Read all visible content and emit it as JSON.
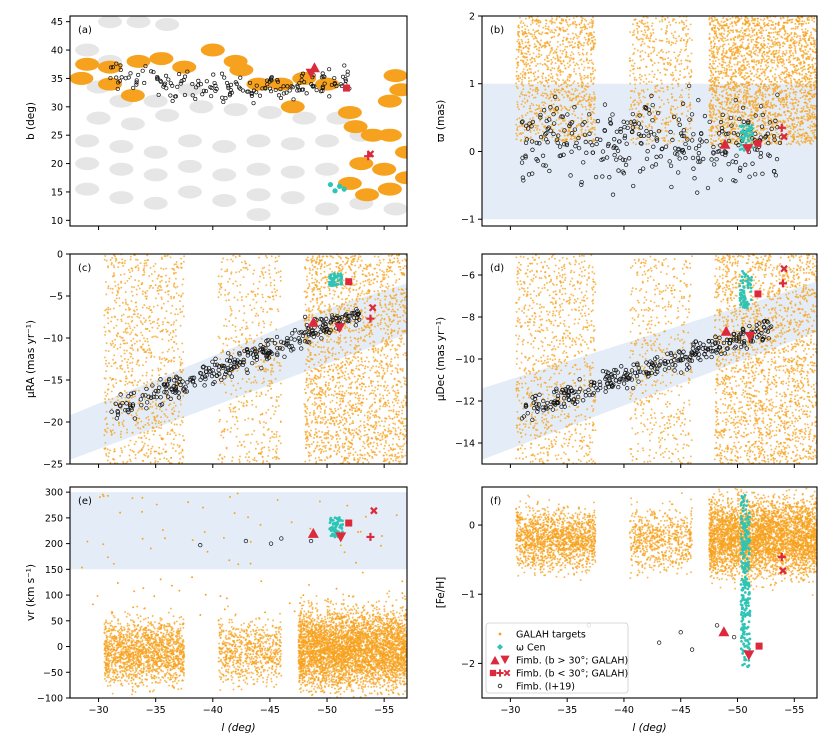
{
  "colors": {
    "galah": "#f7a21e",
    "omega": "#2ec4b6",
    "fimb": "#dc2a3c",
    "band": "#e4edf7",
    "grey": "#c7c7c7",
    "ring": "#111111"
  },
  "chart_data": [
    {
      "id": "a",
      "type": "scatter",
      "panel_label": "(a)",
      "xlabel": "",
      "ylabel": "b (deg)",
      "xlim": [
        -27.5,
        -57
      ],
      "ylim": [
        9,
        46
      ],
      "xticks": [
        -30,
        -35,
        -40,
        -45,
        -50,
        -55
      ],
      "xtick_labels": [
        "",
        "",
        "",
        "",
        "",
        ""
      ],
      "yticks": [
        10,
        15,
        20,
        25,
        30,
        35,
        40,
        45
      ],
      "ytick_labels": [
        "10",
        "15",
        "20",
        "25",
        "30",
        "35",
        "40",
        "45"
      ],
      "series": [
        {
          "name": "Other survey fields",
          "color": "grey",
          "points": [
            [
              -31,
              45
            ],
            [
              -33.5,
              45
            ],
            [
              -36,
              44.5
            ],
            [
              -29,
              40
            ],
            [
              -31,
              38
            ],
            [
              -30,
              33.5
            ],
            [
              -32,
              31
            ],
            [
              -35,
              31
            ],
            [
              -38,
              33
            ],
            [
              -30,
              28
            ],
            [
              -33,
              27
            ],
            [
              -36,
              28.5
            ],
            [
              -39,
              30
            ],
            [
              -42,
              29.5
            ],
            [
              -45,
              29
            ],
            [
              -48,
              28
            ],
            [
              -51,
              28
            ],
            [
              -29,
              24
            ],
            [
              -32,
              23
            ],
            [
              -35,
              22
            ],
            [
              -38,
              24
            ],
            [
              -41,
              23
            ],
            [
              -44,
              24
            ],
            [
              -47,
              23.5
            ],
            [
              -50,
              24
            ],
            [
              -53,
              25
            ],
            [
              -29,
              20
            ],
            [
              -32,
              19
            ],
            [
              -35,
              18
            ],
            [
              -38,
              19.5
            ],
            [
              -41,
              18
            ],
            [
              -44,
              19
            ],
            [
              -47,
              18.5
            ],
            [
              -50,
              19
            ],
            [
              -29,
              15.5
            ],
            [
              -32,
              14
            ],
            [
              -35,
              13
            ],
            [
              -38,
              15
            ],
            [
              -41,
              13.5
            ],
            [
              -44,
              14.5
            ],
            [
              -47,
              14
            ],
            [
              -50,
              12
            ],
            [
              -53,
              13
            ],
            [
              -56,
              12
            ],
            [
              -44,
              11
            ]
          ]
        },
        {
          "name": "GALAH fields",
          "color": "galah",
          "points": [
            [
              -28.5,
              35
            ],
            [
              -31,
              34
            ],
            [
              -33,
              32
            ],
            [
              -31,
              37
            ],
            [
              -33.5,
              38
            ],
            [
              -35.5,
              38.5
            ],
            [
              -37.5,
              37
            ],
            [
              -40,
              40
            ],
            [
              -42,
              38
            ],
            [
              -42.5,
              36.5
            ],
            [
              -44,
              34
            ],
            [
              -46,
              34
            ],
            [
              -48,
              35
            ],
            [
              -50,
              34
            ],
            [
              -47,
              30
            ],
            [
              -52,
              29
            ],
            [
              -52.5,
              26.5
            ],
            [
              -54,
              25
            ],
            [
              -55.5,
              25
            ],
            [
              -57,
              22
            ],
            [
              -53,
              20
            ],
            [
              -55,
              19
            ],
            [
              -57,
              17.5
            ],
            [
              -55.5,
              15.5
            ],
            [
              -53.5,
              14.5
            ],
            [
              -52,
              16.5
            ],
            [
              -56,
              35.5
            ],
            [
              -55.5,
              31
            ],
            [
              -56.5,
              33
            ],
            [
              -29,
              37.5
            ]
          ]
        }
      ],
      "omega_points": [
        [
          -50.3,
          16.3
        ],
        [
          -50.7,
          15.2
        ],
        [
          -51.1,
          16.0
        ],
        [
          -51.5,
          15.5
        ]
      ],
      "fimb_markers": [
        {
          "marker": "^",
          "l": -48.9,
          "b": 36.8
        },
        {
          "marker": "v",
          "l": -48.6,
          "b": 36.0
        },
        {
          "marker": "s",
          "l": -51.7,
          "b": 33.3
        },
        {
          "marker": "x",
          "l": -53.8,
          "b": 21.7
        },
        {
          "marker": "+",
          "l": -53.6,
          "b": 21.3
        }
      ]
    },
    {
      "id": "b",
      "type": "scatter",
      "panel_label": "(b)",
      "xlabel": "",
      "ylabel": "ϖ (mas)",
      "xlim": [
        -27.5,
        -57
      ],
      "ylim": [
        -1.1,
        2
      ],
      "xticks": [
        -30,
        -35,
        -40,
        -45,
        -50,
        -55
      ],
      "xtick_labels": [
        "",
        "",
        "",
        "",
        "",
        ""
      ],
      "yticks": [
        -1,
        0,
        1,
        2
      ],
      "ytick_labels": [
        "−1",
        "0",
        "1",
        "2"
      ],
      "band": {
        "type": "rect",
        "x": [
          -27.5,
          -57
        ],
        "y": [
          -1,
          1
        ]
      },
      "galah_groups": [
        {
          "l": [
            -30.5,
            -37.5
          ],
          "y": [
            0.15,
            2.0
          ],
          "n": 1100
        },
        {
          "l": [
            -40.5,
            -46.0
          ],
          "y": [
            0.1,
            2.0
          ],
          "n": 520
        },
        {
          "l": [
            -47.5,
            -57.0
          ],
          "y": [
            0.1,
            2.0
          ],
          "n": 2400
        }
      ],
      "ring_band": {
        "l": [
          -31,
          -54
        ],
        "y": [
          -0.6,
          0.9
        ],
        "n": 320
      },
      "omega_block": {
        "l": [
          -50.2,
          -51.4
        ],
        "y": [
          0.0,
          0.4
        ],
        "n": 60
      },
      "fimb_markers": [
        {
          "marker": "^",
          "l": -48.9,
          "y": 0.1
        },
        {
          "marker": "v",
          "l": -50.9,
          "y": 0.05
        },
        {
          "marker": "s",
          "l": -51.8,
          "y": 0.12
        },
        {
          "marker": "+",
          "l": -53.9,
          "y": 0.35
        },
        {
          "marker": "x",
          "l": -54.1,
          "y": 0.22
        }
      ]
    },
    {
      "id": "c",
      "type": "scatter",
      "panel_label": "(c)",
      "xlabel": "",
      "ylabel": "μRA (mas yr⁻¹)",
      "xlim": [
        -27.5,
        -57
      ],
      "ylim": [
        -25,
        0
      ],
      "xticks": [
        -30,
        -35,
        -40,
        -45,
        -50,
        -55
      ],
      "xtick_labels": [
        "",
        "",
        "",
        "",
        "",
        ""
      ],
      "yticks": [
        -25,
        -20,
        -15,
        -10,
        -5,
        0
      ],
      "ytick_labels": [
        "−25",
        "−20",
        "−15",
        "−10",
        "−5",
        "0"
      ],
      "band": {
        "type": "poly",
        "points": [
          [
            -27.5,
            -19.2
          ],
          [
            -50,
            -6.5
          ],
          [
            -57,
            -3.5
          ],
          [
            -57,
            -9.5
          ],
          [
            -27.5,
            -24.5
          ]
        ]
      },
      "galah_groups": [
        {
          "l": [
            -30.5,
            -37.5
          ],
          "y": [
            -25,
            0
          ],
          "n": 900
        },
        {
          "l": [
            -40.5,
            -46.0
          ],
          "y": [
            -25,
            0
          ],
          "n": 480
        },
        {
          "l": [
            -48.0,
            -57.0
          ],
          "y": [
            -25,
            0
          ],
          "n": 2000
        }
      ],
      "ring_line": {
        "l": [
          -31,
          -53
        ],
        "y_start": -19,
        "y_end": -7,
        "scatter": 1.6,
        "n": 320
      },
      "omega_block": {
        "l": [
          -50.2,
          -51.3
        ],
        "y": [
          -3.8,
          -2.3
        ],
        "n": 60
      },
      "fimb_markers": [
        {
          "marker": "^",
          "l": -48.8,
          "y": -8.2
        },
        {
          "marker": "v",
          "l": -51.1,
          "y": -8.7
        },
        {
          "marker": "s",
          "l": -51.9,
          "y": -3.3
        },
        {
          "marker": "x",
          "l": -54.0,
          "y": -6.4
        },
        {
          "marker": "+",
          "l": -53.8,
          "y": -7.7
        }
      ]
    },
    {
      "id": "d",
      "type": "scatter",
      "panel_label": "(d)",
      "xlabel": "",
      "ylabel": "μDec (mas yr⁻¹)",
      "xlim": [
        -27.5,
        -57
      ],
      "ylim": [
        -15,
        -5
      ],
      "xticks": [
        -30,
        -35,
        -40,
        -45,
        -50,
        -55
      ],
      "xtick_labels": [
        "",
        "",
        "",
        "",
        "",
        ""
      ],
      "yticks": [
        -14,
        -12,
        -10,
        -8,
        -6
      ],
      "ytick_labels": [
        "−14",
        "−12",
        "−10",
        "−8",
        "−6"
      ],
      "band": {
        "type": "poly",
        "points": [
          [
            -27.5,
            -11.4
          ],
          [
            -52,
            -7.2
          ],
          [
            -57,
            -6.3
          ],
          [
            -57,
            -8.7
          ],
          [
            -27.5,
            -14.8
          ]
        ]
      },
      "galah_groups": [
        {
          "l": [
            -30.5,
            -37.5
          ],
          "y": [
            -15,
            -5
          ],
          "n": 900
        },
        {
          "l": [
            -40.5,
            -46.0
          ],
          "y": [
            -15,
            -5
          ],
          "n": 480
        },
        {
          "l": [
            -48.0,
            -57.0
          ],
          "y": [
            -15,
            -5
          ],
          "n": 2000
        }
      ],
      "ring_line": {
        "l": [
          -31,
          -53
        ],
        "y_start": -12.5,
        "y_end": -8.5,
        "scatter": 0.6,
        "n": 320
      },
      "omega_block": {
        "l": [
          -50.2,
          -51.3
        ],
        "y": [
          -7.6,
          -5.8
        ],
        "n": 70
      },
      "fimb_markers": [
        {
          "marker": "^",
          "l": -49.0,
          "y": -8.7
        },
        {
          "marker": "v",
          "l": -51.1,
          "y": -8.9
        },
        {
          "marker": "s",
          "l": -51.8,
          "y": -6.9
        },
        {
          "marker": "x",
          "l": -54.1,
          "y": -5.7
        },
        {
          "marker": "+",
          "l": -54.0,
          "y": -6.4
        }
      ]
    },
    {
      "id": "e",
      "type": "scatter",
      "panel_label": "(e)",
      "xlabel": "l (deg)",
      "ylabel": "vr (km s⁻¹)",
      "xlim": [
        -27.5,
        -57
      ],
      "ylim": [
        -100,
        310
      ],
      "xticks": [
        -30,
        -35,
        -40,
        -45,
        -50,
        -55
      ],
      "xtick_labels": [
        "−30",
        "−35",
        "−40",
        "−45",
        "−50",
        "−55"
      ],
      "yticks": [
        -100,
        -50,
        0,
        50,
        100,
        150,
        200,
        250,
        300
      ],
      "ytick_labels": [
        "−100",
        "−50",
        "0",
        "50",
        "100",
        "150",
        "200",
        "250",
        "300"
      ],
      "band": {
        "type": "rect",
        "x": [
          -27.5,
          -57
        ],
        "y": [
          150,
          300
        ]
      },
      "galah_groups": [
        {
          "l": [
            -30.5,
            -37.5
          ],
          "y": [
            -80,
            60
          ],
          "n": 1600
        },
        {
          "l": [
            -40.5,
            -46.0
          ],
          "y": [
            -80,
            60
          ],
          "n": 700
        },
        {
          "l": [
            -47.5,
            -57.0
          ],
          "y": [
            -90,
            80
          ],
          "n": 4200
        }
      ],
      "galah_sparse": {
        "l": [
          -28,
          -57
        ],
        "y": [
          60,
          300
        ],
        "n": 80
      },
      "ring_points": [
        [
          -38.9,
          197
        ],
        [
          -42.9,
          205
        ],
        [
          -45.1,
          200
        ],
        [
          -46.0,
          210
        ],
        [
          -48.6,
          205
        ]
      ],
      "omega_block": {
        "l": [
          -50.2,
          -51.4
        ],
        "y": [
          212,
          252
        ],
        "n": 70
      },
      "fimb_markers": [
        {
          "marker": "^",
          "l": -48.8,
          "y": 219
        },
        {
          "marker": "v",
          "l": -51.2,
          "y": 214
        },
        {
          "marker": "s",
          "l": -51.9,
          "y": 240
        },
        {
          "marker": "x",
          "l": -54.1,
          "y": 264
        },
        {
          "marker": "+",
          "l": -53.8,
          "y": 213
        }
      ]
    },
    {
      "id": "f",
      "type": "scatter",
      "panel_label": "(f)",
      "xlabel": "l (deg)",
      "ylabel": "[Fe/H]",
      "xlim": [
        -27.5,
        -57
      ],
      "ylim": [
        -2.5,
        0.55
      ],
      "xticks": [
        -30,
        -35,
        -40,
        -45,
        -50,
        -55
      ],
      "xtick_labels": [
        "−30",
        "−35",
        "−40",
        "−45",
        "−50",
        "−55"
      ],
      "yticks": [
        -2,
        -1,
        0
      ],
      "ytick_labels": [
        "−2",
        "−1",
        "0"
      ],
      "galah_groups": [
        {
          "l": [
            -30.5,
            -37.5
          ],
          "y": [
            -0.7,
            0.3
          ],
          "n": 1500
        },
        {
          "l": [
            -40.5,
            -46.0
          ],
          "y": [
            -0.7,
            0.3
          ],
          "n": 650
        },
        {
          "l": [
            -47.5,
            -57.0
          ],
          "y": [
            -0.8,
            0.45
          ],
          "n": 4000
        }
      ],
      "omega_column": {
        "l": [
          -50.3,
          -51.1
        ],
        "y": [
          -2.05,
          0.45
        ],
        "n": 260
      },
      "ring_points": [
        [
          -36.9,
          -1.45
        ],
        [
          -43.1,
          -1.7
        ],
        [
          -45.0,
          -1.55
        ],
        [
          -46.0,
          -1.8
        ],
        [
          -48.2,
          -1.45
        ],
        [
          -49.7,
          -1.62
        ]
      ],
      "fimb_markers": [
        {
          "marker": "^",
          "l": -48.8,
          "y": -1.55
        },
        {
          "marker": "v",
          "l": -51.0,
          "y": -1.87
        },
        {
          "marker": "s",
          "l": -51.9,
          "y": -1.75
        },
        {
          "marker": "+",
          "l": -53.9,
          "y": -0.46
        },
        {
          "marker": "x",
          "l": -54.0,
          "y": -0.66
        }
      ],
      "legend": {
        "position": "lower-left",
        "entries": [
          {
            "marker": "dot-orange",
            "label": "GALAH targets"
          },
          {
            "marker": "diamond-teal",
            "label": "ω Cen"
          },
          {
            "marker": "tri-red",
            "label": "Fimb. (b > 30°; GALAH)"
          },
          {
            "marker": "sq-red",
            "label": "Fimb. (b < 30°; GALAH)"
          },
          {
            "marker": "ring",
            "label": "Fimb. (I+19)"
          }
        ]
      }
    }
  ]
}
